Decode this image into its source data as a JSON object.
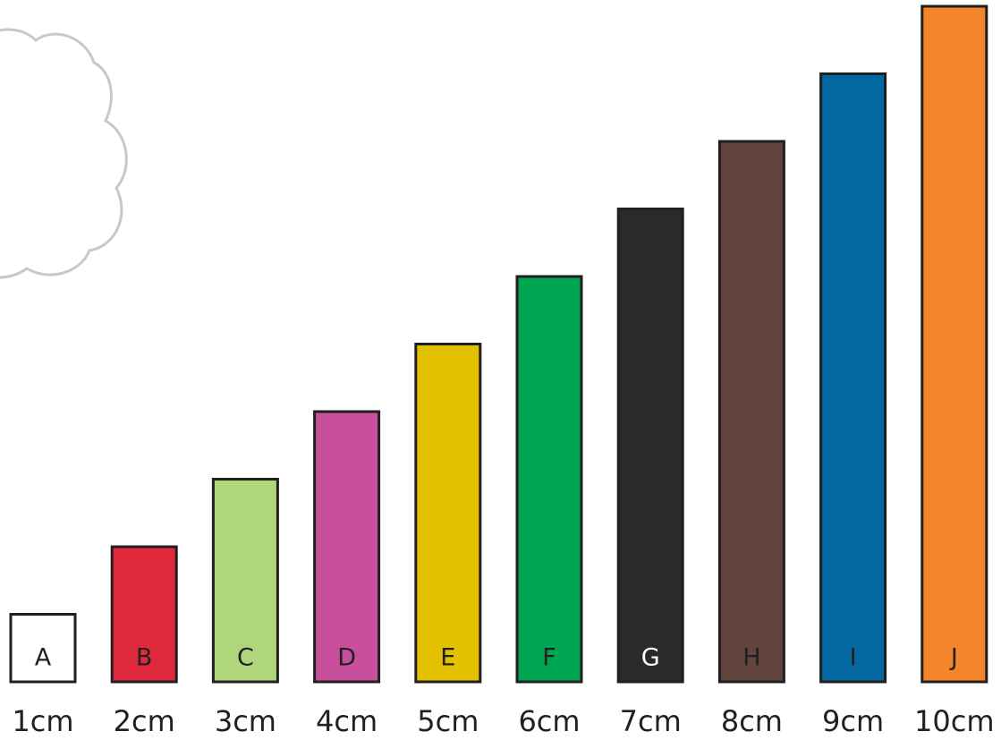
{
  "rods": [
    {
      "letter": "A",
      "length_cm": 1,
      "length_label": "1cm",
      "color": "#ffffff",
      "text_color": "#231f20"
    },
    {
      "letter": "B",
      "length_cm": 2,
      "length_label": "2cm",
      "color": "#df2a3e",
      "text_color": "#231f20"
    },
    {
      "letter": "C",
      "length_cm": 3,
      "length_label": "3cm",
      "color": "#b0d67b",
      "text_color": "#231f20"
    },
    {
      "letter": "D",
      "length_cm": 4,
      "length_label": "4cm",
      "color": "#c74f9c",
      "text_color": "#231f20"
    },
    {
      "letter": "E",
      "length_cm": 5,
      "length_label": "5cm",
      "color": "#e2c100",
      "text_color": "#231f20"
    },
    {
      "letter": "F",
      "length_cm": 6,
      "length_label": "6cm",
      "color": "#00a551",
      "text_color": "#231f20"
    },
    {
      "letter": "G",
      "length_cm": 7,
      "length_label": "7cm",
      "color": "#2b292a",
      "text_color": "#ffffff"
    },
    {
      "letter": "H",
      "length_cm": 8,
      "length_label": "8cm",
      "color": "#61443b",
      "text_color": "#231f20"
    },
    {
      "letter": "I",
      "length_cm": 9,
      "length_label": "9cm",
      "color": "#02689f",
      "text_color": "#231f20"
    },
    {
      "letter": "J",
      "length_cm": 10,
      "length_label": "10cm",
      "color": "#f3862a",
      "text_color": "#231f20"
    }
  ],
  "colors": {
    "outline": "#231f20",
    "cloud_stroke": "#c6c8ca",
    "background": "#ffffff"
  }
}
